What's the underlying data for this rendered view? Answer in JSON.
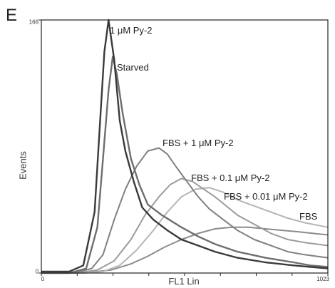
{
  "panel_label": "E",
  "chart_data": {
    "type": "line",
    "xlabel": "FL1 Lin",
    "ylabel": "Events",
    "xlim": [
      0,
      1023
    ],
    "ylim": [
      0,
      166
    ],
    "x_ticks": [
      "0",
      "1023"
    ],
    "y_ticks": [
      "0",
      "166"
    ],
    "grid": false,
    "legend": "none (inline curve labels)",
    "series": [
      {
        "name": "1 μM Py-2",
        "color": "#3a3a3a",
        "x": [
          0,
          100,
          150,
          190,
          210,
          225,
          240,
          260,
          280,
          300,
          330,
          360,
          400,
          450,
          500,
          560,
          620,
          700,
          800,
          900,
          960,
          1023
        ],
        "y": [
          1,
          1,
          5,
          40,
          100,
          145,
          166,
          140,
          100,
          80,
          60,
          43,
          35,
          28,
          22,
          18,
          14,
          10,
          7,
          5,
          4,
          3
        ]
      },
      {
        "name": "Starved",
        "color": "#6e6e6e",
        "x": [
          0,
          100,
          160,
          200,
          220,
          240,
          255,
          270,
          290,
          320,
          350,
          380,
          430,
          500,
          560,
          620,
          700,
          800,
          900,
          960,
          1023
        ],
        "y": [
          0,
          0,
          3,
          30,
          75,
          120,
          142,
          130,
          105,
          75,
          58,
          45,
          38,
          30,
          24,
          19,
          14,
          10,
          7,
          5,
          4
        ]
      },
      {
        "name": "FBS + 1 μM Py-2",
        "color": "#808080",
        "x": [
          0,
          120,
          180,
          220,
          260,
          300,
          340,
          380,
          420,
          450,
          480,
          520,
          560,
          600,
          650,
          700,
          760,
          820,
          880,
          940,
          1023
        ],
        "y": [
          0,
          0,
          3,
          12,
          35,
          55,
          70,
          80,
          82,
          78,
          70,
          60,
          50,
          42,
          35,
          28,
          22,
          18,
          14,
          12,
          10
        ]
      },
      {
        "name": "FBS + 0.1 μM Py-2",
        "color": "#9b9b9b",
        "x": [
          0,
          130,
          200,
          260,
          320,
          370,
          420,
          460,
          500,
          540,
          580,
          620,
          660,
          700,
          760,
          820,
          880,
          940,
          1023
        ],
        "y": [
          0,
          0,
          2,
          8,
          22,
          38,
          50,
          58,
          62,
          60,
          55,
          50,
          44,
          38,
          32,
          26,
          22,
          20,
          18
        ]
      },
      {
        "name": "FBS + 0.01 μM Py-2",
        "color": "#b5b5b5",
        "x": [
          0,
          150,
          220,
          280,
          340,
          400,
          450,
          500,
          550,
          600,
          650,
          700,
          760,
          820,
          880,
          940,
          1023
        ],
        "y": [
          0,
          0,
          1,
          5,
          15,
          28,
          40,
          50,
          55,
          56,
          53,
          48,
          44,
          40,
          36,
          33,
          30
        ]
      },
      {
        "name": "FBS",
        "color": "#8c8c8c",
        "x": [
          0,
          150,
          250,
          320,
          380,
          440,
          500,
          560,
          620,
          680,
          740,
          800,
          860,
          920,
          970,
          1023
        ],
        "y": [
          0,
          0,
          2,
          6,
          11,
          17,
          22,
          26,
          29,
          30,
          30,
          29,
          28,
          27,
          26,
          25
        ]
      }
    ]
  }
}
